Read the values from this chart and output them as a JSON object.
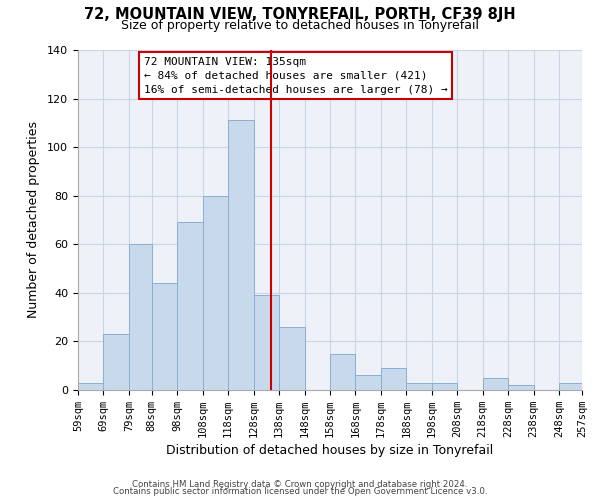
{
  "title": "72, MOUNTAIN VIEW, TONYREFAIL, PORTH, CF39 8JH",
  "subtitle": "Size of property relative to detached houses in Tonyrefail",
  "xlabel": "Distribution of detached houses by size in Tonyrefail",
  "ylabel": "Number of detached properties",
  "bin_labels": [
    "59sqm",
    "69sqm",
    "79sqm",
    "88sqm",
    "98sqm",
    "108sqm",
    "118sqm",
    "128sqm",
    "138sqm",
    "148sqm",
    "158sqm",
    "168sqm",
    "178sqm",
    "188sqm",
    "198sqm",
    "208sqm",
    "218sqm",
    "228sqm",
    "238sqm",
    "248sqm",
    "257sqm"
  ],
  "bin_edges": [
    59,
    69,
    79,
    88,
    98,
    108,
    118,
    128,
    138,
    148,
    158,
    168,
    178,
    188,
    198,
    208,
    218,
    228,
    238,
    248,
    257
  ],
  "bar_heights": [
    3,
    23,
    60,
    44,
    69,
    80,
    111,
    39,
    26,
    0,
    15,
    6,
    9,
    3,
    3,
    0,
    5,
    2,
    0,
    3
  ],
  "bar_color": "#c9d9ec",
  "bar_edgecolor": "#8aafd0",
  "vline_x": 135,
  "vline_color": "#cc0000",
  "annotation_title": "72 MOUNTAIN VIEW: 135sqm",
  "annotation_line1": "← 84% of detached houses are smaller (421)",
  "annotation_line2": "16% of semi-detached houses are larger (78) →",
  "annotation_box_edgecolor": "#cc0000",
  "annotation_box_facecolor": "#ffffff",
  "ylim": [
    0,
    140
  ],
  "yticks": [
    0,
    20,
    40,
    60,
    80,
    100,
    120,
    140
  ],
  "footer1": "Contains HM Land Registry data © Crown copyright and database right 2024.",
  "footer2": "Contains public sector information licensed under the Open Government Licence v3.0.",
  "background_color": "#ffffff",
  "grid_color": "#c8d4e8",
  "ax_background": "#eef2f8"
}
